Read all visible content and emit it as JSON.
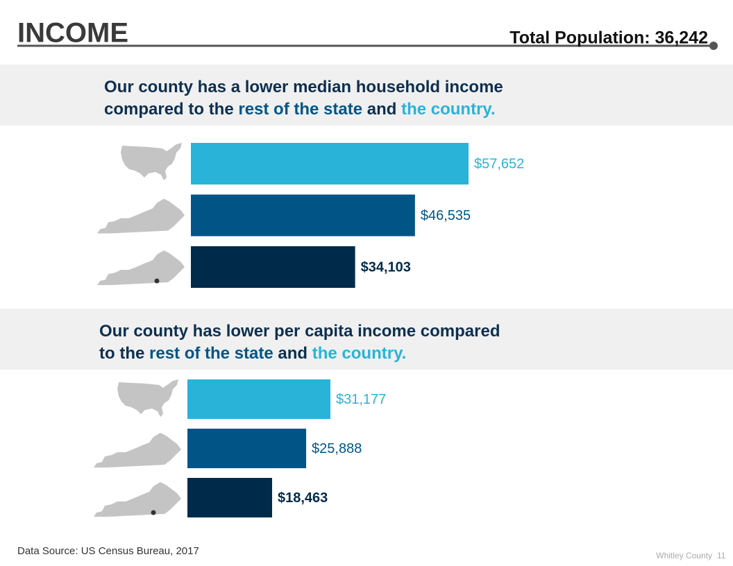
{
  "header": {
    "title": "INCOME",
    "population": "Total Population: 36,242"
  },
  "chart_data": [
    {
      "type": "bar",
      "title": [
        [
          {
            "text": "Our county has a lower median household income",
            "color": "#0d2f4f"
          }
        ],
        [
          {
            "text": "compared to the ",
            "color": "#0d2f4f"
          },
          {
            "text": "rest of the state",
            "color": "#005587"
          },
          {
            "text": " and ",
            "color": "#0d2f4f"
          },
          {
            "text": "the country.",
            "color": "#29b3d9"
          }
        ]
      ],
      "categories": [
        null,
        null,
        null
      ],
      "values": [
        57652,
        46535,
        34103
      ],
      "value_labels": [
        "$57,652",
        "$46,535",
        "$34,103"
      ],
      "colors": [
        "#29b3d9",
        "#005587",
        "#002a4a"
      ]
    },
    {
      "type": "bar",
      "title": [
        [
          {
            "text": "Our county has lower per capita income compared",
            "color": "#0d2f4f"
          }
        ],
        [
          {
            "text": "to the ",
            "color": "#0d2f4f"
          },
          {
            "text": "rest of the state",
            "color": "#005587"
          },
          {
            "text": " and ",
            "color": "#0d2f4f"
          },
          {
            "text": "the country.",
            "color": "#29b3d9"
          }
        ]
      ],
      "categories": [
        null,
        null,
        null
      ],
      "values": [
        31177,
        25888,
        18463
      ],
      "value_labels": [
        "$31,177",
        "$25,888",
        "$18,463"
      ],
      "colors": [
        "#29b3d9",
        "#005587",
        "#002a4a"
      ]
    }
  ],
  "footer": {
    "source": "Data Source: US Census Bureau, 2017",
    "county": "Whitley County",
    "page": 11
  }
}
